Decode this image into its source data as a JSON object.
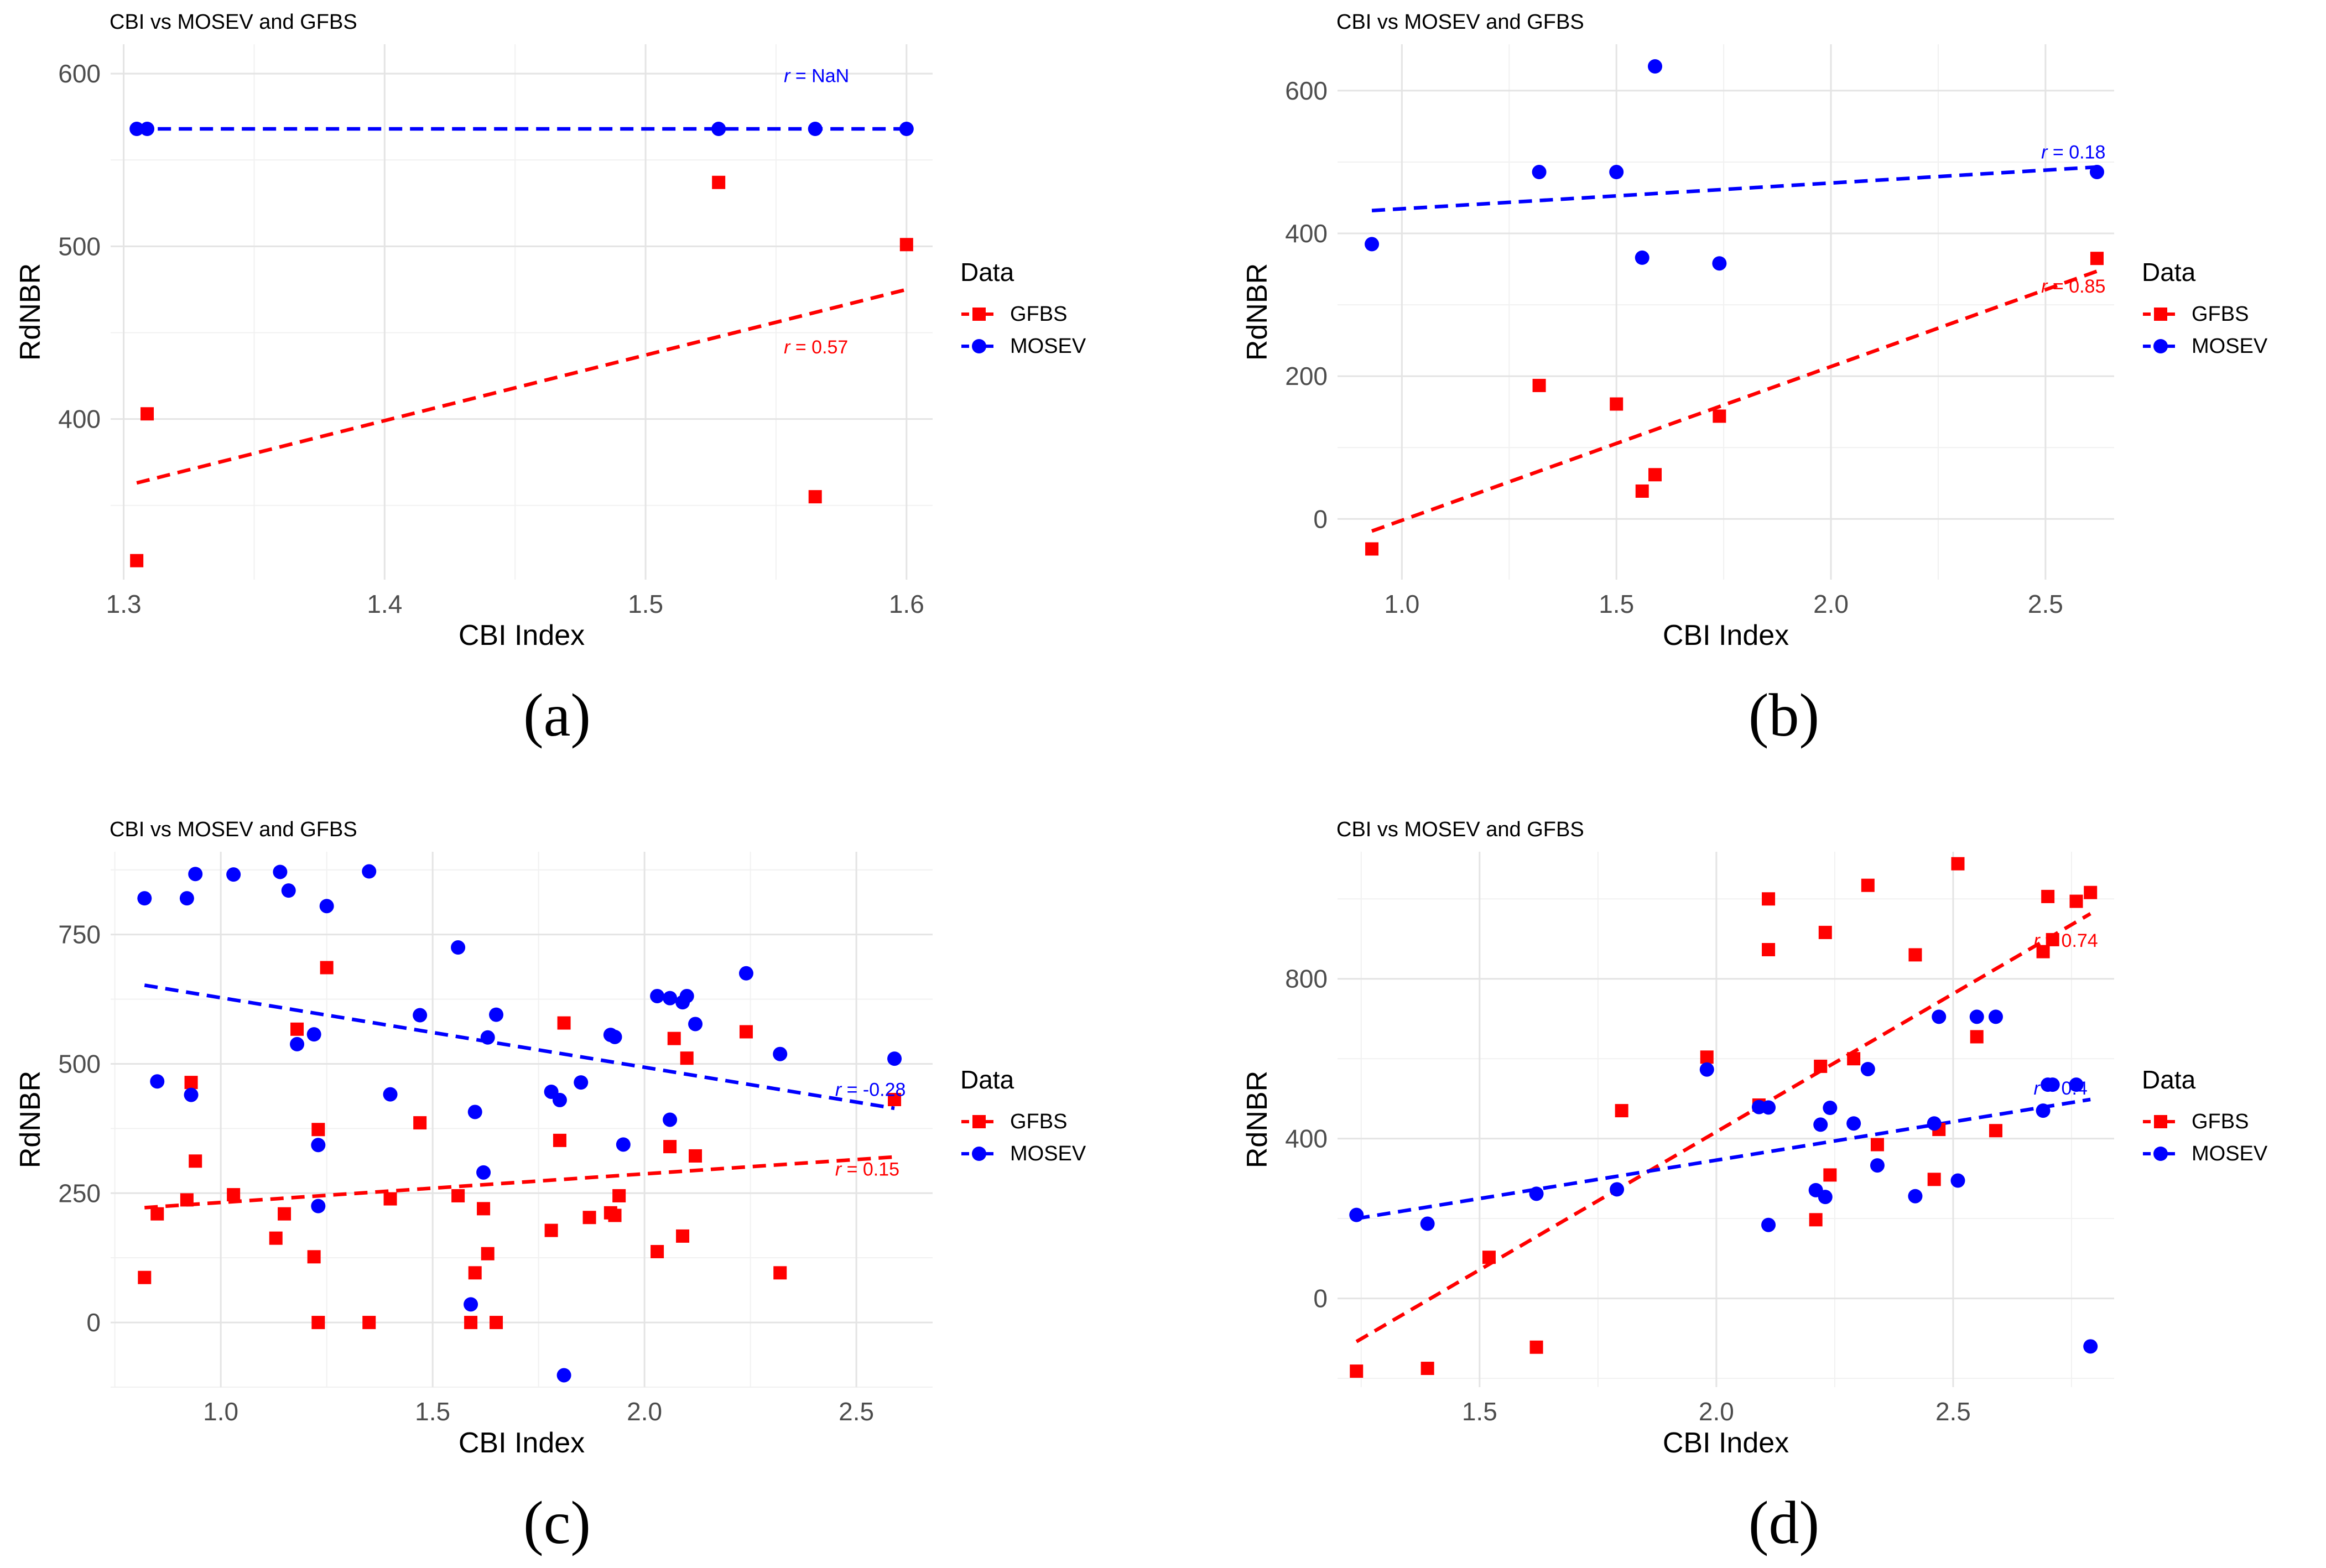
{
  "chart_data": [
    {
      "id": "a",
      "type": "scatter",
      "title": "CBI vs MOSEV and GFBS",
      "xlabel": "CBI Index",
      "ylabel": "RdNBR",
      "caption": "(a)",
      "xlim": [
        1.295,
        1.61
      ],
      "ylim": [
        307,
        617
      ],
      "xticks": [
        1.3,
        1.4,
        1.5,
        1.6
      ],
      "xtick_labels": [
        "1.3",
        "1.4",
        "1.5",
        "1.6"
      ],
      "yticks": [
        400,
        500,
        600
      ],
      "ytick_labels": [
        "400",
        "500",
        "600"
      ],
      "legend": {
        "title": "Data",
        "position": "right",
        "entries": [
          "GFBS",
          "MOSEV"
        ]
      },
      "series": [
        {
          "name": "GFBS",
          "color": "#ff0000",
          "marker": "square",
          "points": [
            [
              1.305,
              318
            ],
            [
              1.309,
              403
            ],
            [
              1.528,
              537
            ],
            [
              1.565,
              355
            ],
            [
              1.6,
              501
            ]
          ],
          "fit": [
            [
              1.305,
              363
            ],
            [
              1.6,
              475
            ]
          ],
          "r_label": {
            "prefix": "r",
            "text": " = 0.57",
            "at": [
              1.553,
              438
            ]
          }
        },
        {
          "name": "MOSEV",
          "color": "#0000ff",
          "marker": "circle",
          "points": [
            [
              1.305,
              568
            ],
            [
              1.309,
              568
            ],
            [
              1.528,
              568
            ],
            [
              1.565,
              568
            ],
            [
              1.6,
              568
            ]
          ],
          "fit": [
            [
              1.305,
              568
            ],
            [
              1.6,
              568
            ]
          ],
          "r_label": {
            "prefix": "r",
            "text": " = NaN",
            "at": [
              1.553,
              595
            ]
          }
        }
      ]
    },
    {
      "id": "b",
      "type": "scatter",
      "title": "CBI vs MOSEV and GFBS",
      "xlabel": "CBI Index",
      "ylabel": "RdNBR",
      "caption": "(b)",
      "xlim": [
        0.85,
        2.66
      ],
      "ylim": [
        -85,
        665
      ],
      "xticks": [
        1.0,
        1.5,
        2.0,
        2.5
      ],
      "xtick_labels": [
        "1.0",
        "1.5",
        "2.0",
        "2.5"
      ],
      "yticks": [
        0,
        200,
        400,
        600
      ],
      "ytick_labels": [
        "0",
        "200",
        "400",
        "600"
      ],
      "legend": {
        "title": "Data",
        "position": "right",
        "entries": [
          "GFBS",
          "MOSEV"
        ]
      },
      "series": [
        {
          "name": "GFBS",
          "color": "#ff0000",
          "marker": "square",
          "points": [
            [
              0.93,
              -42
            ],
            [
              1.32,
              187
            ],
            [
              1.5,
              161
            ],
            [
              1.56,
              39
            ],
            [
              1.59,
              62
            ],
            [
              1.74,
              144
            ],
            [
              2.62,
              365
            ]
          ],
          "fit": [
            [
              0.93,
              -17
            ],
            [
              2.62,
              347
            ]
          ],
          "r_label": {
            "prefix": "r",
            "text": " = 0.85",
            "at": [
              2.49,
              317
            ]
          }
        },
        {
          "name": "MOSEV",
          "color": "#0000ff",
          "marker": "circle",
          "points": [
            [
              0.93,
              385
            ],
            [
              1.32,
              486
            ],
            [
              1.5,
              486
            ],
            [
              1.56,
              366
            ],
            [
              1.59,
              634
            ],
            [
              1.74,
              358
            ],
            [
              2.62,
              486
            ]
          ],
          "fit": [
            [
              0.93,
              432
            ],
            [
              2.62,
              493
            ]
          ],
          "r_label": {
            "prefix": "r",
            "text": " = 0.18",
            "at": [
              2.49,
              505
            ]
          }
        }
      ]
    },
    {
      "id": "c",
      "type": "scatter",
      "title": "CBI vs MOSEV and GFBS",
      "xlabel": "CBI Index",
      "ylabel": "RdNBR",
      "caption": "(c)",
      "xlim": [
        0.74,
        2.68
      ],
      "ylim": [
        -125,
        910
      ],
      "xticks": [
        1.0,
        1.5,
        2.0,
        2.5
      ],
      "xtick_labels": [
        "1.0",
        "1.5",
        "2.0",
        "2.5"
      ],
      "yticks": [
        0,
        250,
        500,
        750
      ],
      "ytick_labels": [
        "0",
        "250",
        "500",
        "750"
      ],
      "legend": {
        "title": "Data",
        "position": "right",
        "entries": [
          "GFBS",
          "MOSEV"
        ]
      },
      "series": [
        {
          "name": "GFBS",
          "color": "#ff0000",
          "marker": "square",
          "points": [
            [
              0.82,
              87
            ],
            [
              0.85,
              210
            ],
            [
              0.92,
              237
            ],
            [
              0.93,
              464
            ],
            [
              0.94,
              312
            ],
            [
              1.03,
              247
            ],
            [
              1.13,
              163
            ],
            [
              1.15,
              210
            ],
            [
              1.18,
              567
            ],
            [
              1.22,
              127
            ],
            [
              1.23,
              373
            ],
            [
              1.23,
              0
            ],
            [
              1.25,
              686
            ],
            [
              1.35,
              0
            ],
            [
              1.4,
              239
            ],
            [
              1.47,
              386
            ],
            [
              1.56,
              245
            ],
            [
              1.59,
              0
            ],
            [
              1.6,
              96
            ],
            [
              1.62,
              220
            ],
            [
              1.63,
              133
            ],
            [
              1.65,
              0
            ],
            [
              1.78,
              178
            ],
            [
              1.8,
              352
            ],
            [
              1.81,
              579
            ],
            [
              1.87,
              203
            ],
            [
              1.92,
              212
            ],
            [
              1.93,
              207
            ],
            [
              1.94,
              245
            ],
            [
              2.03,
              137
            ],
            [
              2.06,
              340
            ],
            [
              2.07,
              549
            ],
            [
              2.09,
              167
            ],
            [
              2.1,
              511
            ],
            [
              2.12,
              322
            ],
            [
              2.24,
              562
            ],
            [
              2.32,
              96
            ],
            [
              2.59,
              431
            ]
          ],
          "fit": [
            [
              0.82,
              222
            ],
            [
              2.59,
              320
            ]
          ],
          "r_label": {
            "prefix": "r",
            "text": " = 0.15",
            "at": [
              2.45,
              284
            ]
          }
        },
        {
          "name": "MOSEV",
          "color": "#0000ff",
          "marker": "circle",
          "points": [
            [
              0.82,
              820
            ],
            [
              0.85,
              466
            ],
            [
              0.92,
              820
            ],
            [
              0.93,
              440
            ],
            [
              0.94,
              867
            ],
            [
              1.03,
              866
            ],
            [
              1.14,
              871
            ],
            [
              1.16,
              835
            ],
            [
              1.18,
              538
            ],
            [
              1.22,
              557
            ],
            [
              1.23,
              343
            ],
            [
              1.23,
              225
            ],
            [
              1.25,
              805
            ],
            [
              1.35,
              872
            ],
            [
              1.4,
              441
            ],
            [
              1.47,
              594
            ],
            [
              1.56,
              725
            ],
            [
              1.59,
              35
            ],
            [
              1.6,
              407
            ],
            [
              1.62,
              290
            ],
            [
              1.63,
              551
            ],
            [
              1.65,
              595
            ],
            [
              1.78,
              446
            ],
            [
              1.8,
              430
            ],
            [
              1.81,
              -102
            ],
            [
              1.85,
              464
            ],
            [
              1.92,
              556
            ],
            [
              1.93,
              552
            ],
            [
              1.95,
              344
            ],
            [
              2.03,
              631
            ],
            [
              2.06,
              627
            ],
            [
              2.06,
              392
            ],
            [
              2.09,
              619
            ],
            [
              2.1,
              631
            ],
            [
              2.12,
              577
            ],
            [
              2.24,
              675
            ],
            [
              2.32,
              519
            ],
            [
              2.59,
              510
            ]
          ],
          "fit": [
            [
              0.82,
              652
            ],
            [
              2.59,
              414
            ]
          ],
          "r_label": {
            "prefix": "r",
            "text": " = -0.28",
            "at": [
              2.45,
              438
            ]
          }
        }
      ]
    },
    {
      "id": "d",
      "type": "scatter",
      "title": "CBI vs MOSEV and GFBS",
      "xlabel": "CBI Index",
      "ylabel": "RdNBR",
      "caption": "(d)",
      "xlim": [
        1.2,
        2.84
      ],
      "ylim": [
        -222,
        1118
      ],
      "xticks": [
        1.5,
        2.0,
        2.5
      ],
      "xtick_labels": [
        "1.5",
        "2.0",
        "2.5"
      ],
      "yticks": [
        0,
        400,
        800
      ],
      "ytick_labels": [
        "0",
        "400",
        "800"
      ],
      "legend": {
        "title": "Data",
        "position": "right",
        "entries": [
          "GFBS",
          "MOSEV"
        ]
      },
      "series": [
        {
          "name": "GFBS",
          "color": "#ff0000",
          "marker": "square",
          "points": [
            [
              1.24,
              -182
            ],
            [
              1.39,
              -175
            ],
            [
              1.52,
              103
            ],
            [
              1.62,
              -122
            ],
            [
              1.8,
              470
            ],
            [
              1.98,
              604
            ],
            [
              2.09,
              484
            ],
            [
              2.11,
              1000
            ],
            [
              2.11,
              873
            ],
            [
              2.21,
              197
            ],
            [
              2.22,
              581
            ],
            [
              2.23,
              916
            ],
            [
              2.24,
              309
            ],
            [
              2.29,
              600
            ],
            [
              2.32,
              1034
            ],
            [
              2.34,
              385
            ],
            [
              2.42,
              860
            ],
            [
              2.46,
              298
            ],
            [
              2.47,
              423
            ],
            [
              2.51,
              1088
            ],
            [
              2.55,
              655
            ],
            [
              2.59,
              420
            ],
            [
              2.69,
              868
            ],
            [
              2.7,
              1006
            ],
            [
              2.71,
              898
            ],
            [
              2.76,
              994
            ],
            [
              2.79,
              1016
            ]
          ],
          "fit": [
            [
              1.24,
              -108
            ],
            [
              2.79,
              963
            ]
          ],
          "r_label": {
            "prefix": "r",
            "text": " = 0.74",
            "at": [
              2.67,
              880
            ]
          }
        },
        {
          "name": "MOSEV",
          "color": "#0000ff",
          "marker": "circle",
          "points": [
            [
              1.24,
              209
            ],
            [
              1.39,
              187
            ],
            [
              1.62,
              262
            ],
            [
              1.79,
              273
            ],
            [
              1.98,
              573
            ],
            [
              2.09,
              479
            ],
            [
              2.11,
              184
            ],
            [
              2.11,
              478
            ],
            [
              2.21,
              271
            ],
            [
              2.22,
              435
            ],
            [
              2.23,
              254
            ],
            [
              2.24,
              477
            ],
            [
              2.29,
              438
            ],
            [
              2.32,
              574
            ],
            [
              2.34,
              333
            ],
            [
              2.42,
              256
            ],
            [
              2.46,
              438
            ],
            [
              2.47,
              705
            ],
            [
              2.51,
              295
            ],
            [
              2.55,
              705
            ],
            [
              2.59,
              705
            ],
            [
              2.69,
              470
            ],
            [
              2.7,
              535
            ],
            [
              2.71,
              535
            ],
            [
              2.76,
              535
            ],
            [
              2.79,
              -120
            ]
          ],
          "fit": [
            [
              1.24,
              200
            ],
            [
              2.79,
              498
            ]
          ],
          "r_label": {
            "prefix": "r",
            "text": " = 0.4",
            "at": [
              2.67,
              510
            ]
          }
        }
      ]
    }
  ]
}
